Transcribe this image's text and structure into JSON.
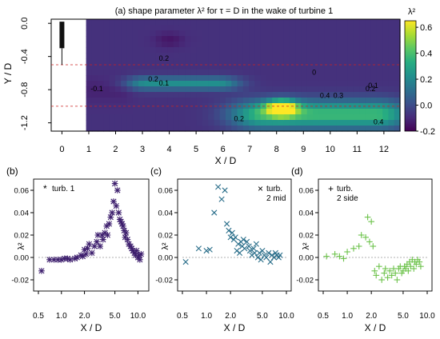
{
  "colors": {
    "cmap": [
      "#440154",
      "#472c7a",
      "#3b518b",
      "#2c718e",
      "#21908d",
      "#27ad81",
      "#5cc863",
      "#aadc32",
      "#fde725"
    ],
    "series_b": "#3d1e6d",
    "series_c": "#2a6e8a",
    "series_d": "#6cc24a",
    "zero_line": "#999999"
  },
  "chart_data": [
    {
      "panel": "(a)",
      "type": "heatmap",
      "title": "(a) shape parameter λ² for τ = D in the wake of turbine 1",
      "xlabel": "X / D",
      "ylabel": "Y / D",
      "colorbar_label": "λ²",
      "xlim": [
        -0.4,
        12.6
      ],
      "ylim": [
        -1.3,
        0.05
      ],
      "xticks": [
        "0",
        "1",
        "2",
        "3",
        "4",
        "5",
        "6",
        "7",
        "8",
        "9",
        "10",
        "11",
        "12"
      ],
      "yticks": [
        "0.0",
        "-0.4",
        "-0.8",
        "-1.2"
      ],
      "colorbar_range": [
        -0.2,
        0.65
      ],
      "colorbar_ticks": [
        "0.6",
        "0.4",
        "0.2",
        "0.0",
        "-0.2"
      ],
      "contour_labels": [
        {
          "text": "0.2",
          "x": 3.4,
          "y": -0.7
        },
        {
          "text": "0.1",
          "x": 3.8,
          "y": -0.75
        },
        {
          "text": "-0.1",
          "x": 1.3,
          "y": -0.82
        },
        {
          "text": "0.2",
          "x": 3.8,
          "y": -0.45
        },
        {
          "text": "0.2",
          "x": 6.6,
          "y": -1.18
        },
        {
          "text": "0",
          "x": 9.4,
          "y": -0.62
        },
        {
          "text": "0.1",
          "x": 11.6,
          "y": -0.78
        },
        {
          "text": "0.2",
          "x": 11.5,
          "y": -0.82
        },
        {
          "text": "0.4",
          "x": 9.8,
          "y": -0.9
        },
        {
          "text": "0.3",
          "x": 10.3,
          "y": -0.9
        },
        {
          "text": "0.4",
          "x": 11.8,
          "y": -1.22
        }
      ],
      "features": [
        {
          "kind": "negative_region",
          "x": [
            0.9,
            2.4
          ],
          "y": [
            -0.62,
            -0.98
          ],
          "level": -0.12
        },
        {
          "kind": "positive_core",
          "x": [
            2.6,
            6.4
          ],
          "y": [
            -0.63,
            -0.82
          ],
          "level": 0.22
        },
        {
          "kind": "positive_core",
          "x": [
            6.6,
            12.6
          ],
          "y": [
            -0.9,
            -1.3
          ],
          "level": 0.38
        },
        {
          "kind": "peak",
          "x": 8.2,
          "y": -1.02,
          "level": 0.6
        },
        {
          "kind": "spot",
          "x": 4.0,
          "y": -0.2,
          "level": -0.15
        }
      ]
    },
    {
      "panel": "(b)",
      "type": "scatter",
      "xlabel": "X / D",
      "ylabel": "λ²",
      "xscale": "log",
      "xlim": [
        0.5,
        12
      ],
      "ylim": [
        -0.03,
        0.07
      ],
      "xticks": [
        "0.5",
        "1.0",
        "2.0",
        "5.0",
        "10.0"
      ],
      "yticks": [
        "0.06",
        "0.04",
        "0.02",
        "0.00",
        "-0.02"
      ],
      "legend": "top-left",
      "series": [
        {
          "name": "turb. 1",
          "marker": "*",
          "x": [
            0.55,
            0.7,
            0.8,
            0.9,
            1.0,
            1.1,
            1.2,
            1.3,
            1.5,
            1.6,
            1.8,
            1.9,
            2.0,
            2.1,
            2.2,
            2.3,
            2.5,
            2.7,
            2.9,
            3.0,
            3.2,
            3.4,
            3.5,
            3.7,
            3.9,
            4.0,
            4.2,
            4.4,
            4.6,
            4.8,
            5.0,
            5.2,
            5.4,
            5.6,
            5.8,
            6.0,
            6.2,
            6.4,
            6.6,
            6.8,
            7.0,
            7.3,
            7.6,
            8.0,
            8.3,
            8.6,
            9.0,
            9.3,
            9.6,
            10.0,
            10.3,
            10.6,
            11.0
          ],
          "y": [
            -0.012,
            -0.002,
            -0.002,
            -0.002,
            -0.002,
            -0.001,
            -0.001,
            -0.002,
            -0.001,
            0.0,
            0.002,
            0.001,
            0.007,
            0.003,
            0.008,
            0.012,
            0.004,
            0.01,
            0.014,
            0.02,
            0.01,
            0.02,
            0.016,
            0.022,
            0.028,
            0.02,
            0.03,
            0.036,
            0.04,
            0.05,
            0.066,
            0.046,
            0.06,
            0.04,
            0.034,
            0.032,
            0.03,
            0.028,
            0.024,
            0.018,
            0.022,
            0.016,
            0.012,
            0.01,
            0.008,
            0.006,
            0.004,
            0.002,
            0.006,
            0.0,
            0.002,
            -0.002,
            0.003
          ]
        }
      ]
    },
    {
      "panel": "(c)",
      "type": "scatter",
      "xlabel": "X / D",
      "ylabel": "λ²",
      "xscale": "log",
      "xlim": [
        0.5,
        10
      ],
      "ylim": [
        -0.03,
        0.07
      ],
      "xticks": [
        "0.5",
        "1.0",
        "2.0",
        "5.0",
        "10.0"
      ],
      "yticks": [
        "0.06",
        "0.04",
        "0.02",
        "0.00",
        "-0.02"
      ],
      "legend": "top-right",
      "series": [
        {
          "name": "turb. 2 mid",
          "marker": "x",
          "x": [
            0.55,
            0.8,
            1.0,
            1.1,
            1.25,
            1.4,
            1.55,
            1.7,
            1.8,
            1.9,
            2.0,
            2.1,
            2.2,
            2.3,
            2.4,
            2.5,
            2.6,
            2.7,
            2.8,
            2.9,
            3.0,
            3.2,
            3.4,
            3.5,
            3.7,
            3.9,
            4.0,
            4.2,
            4.4,
            4.6,
            4.8,
            5.0,
            5.3,
            5.6,
            6.0,
            6.3,
            6.6,
            7.0,
            7.3,
            7.6,
            8.0,
            8.3
          ],
          "y": [
            -0.004,
            0.008,
            0.006,
            0.007,
            0.04,
            0.063,
            0.052,
            0.06,
            0.03,
            0.024,
            0.018,
            0.022,
            0.016,
            0.018,
            0.006,
            0.012,
            0.004,
            0.014,
            0.01,
            0.016,
            0.008,
            0.014,
            0.01,
            0.006,
            0.002,
            0.008,
            0.004,
            0.012,
            0.0,
            0.004,
            -0.002,
            0.006,
            0.002,
            0.0,
            0.004,
            -0.004,
            0.002,
            0.0,
            0.004,
            0.002,
            0.0,
            0.002
          ]
        }
      ]
    },
    {
      "panel": "(d)",
      "type": "scatter",
      "xlabel": "X / D",
      "ylabel": "λ²",
      "xscale": "log",
      "xlim": [
        0.5,
        10
      ],
      "ylim": [
        -0.03,
        0.07
      ],
      "xticks": [
        "0.5",
        "1.0",
        "2.0",
        "5.0",
        "10.0"
      ],
      "yticks": [
        "0.06",
        "0.04",
        "0.02",
        "0.00",
        "-0.02"
      ],
      "legend": "top-left",
      "series": [
        {
          "name": "turb. 2 side",
          "marker": "+",
          "x": [
            0.55,
            0.7,
            0.8,
            0.9,
            1.0,
            1.2,
            1.4,
            1.5,
            1.7,
            1.8,
            1.9,
            2.0,
            2.1,
            2.2,
            2.3,
            2.5,
            2.7,
            2.9,
            3.0,
            3.2,
            3.4,
            3.6,
            3.8,
            4.0,
            4.2,
            4.4,
            4.6,
            4.8,
            5.0,
            5.2,
            5.4,
            5.6,
            5.8,
            6.0,
            6.2,
            6.5,
            6.8,
            7.0,
            7.3,
            7.6,
            8.0,
            8.3
          ],
          "y": [
            0.001,
            0.003,
            0.001,
            -0.001,
            0.005,
            0.008,
            0.01,
            0.02,
            0.018,
            0.036,
            0.014,
            0.032,
            0.01,
            -0.012,
            -0.016,
            -0.008,
            -0.02,
            -0.014,
            -0.01,
            -0.018,
            -0.012,
            -0.016,
            -0.01,
            -0.014,
            -0.02,
            -0.01,
            -0.008,
            -0.014,
            -0.012,
            -0.008,
            -0.01,
            -0.006,
            -0.012,
            -0.004,
            -0.008,
            -0.002,
            -0.01,
            -0.004,
            -0.006,
            -0.002,
            -0.004,
            -0.008
          ]
        }
      ]
    }
  ]
}
